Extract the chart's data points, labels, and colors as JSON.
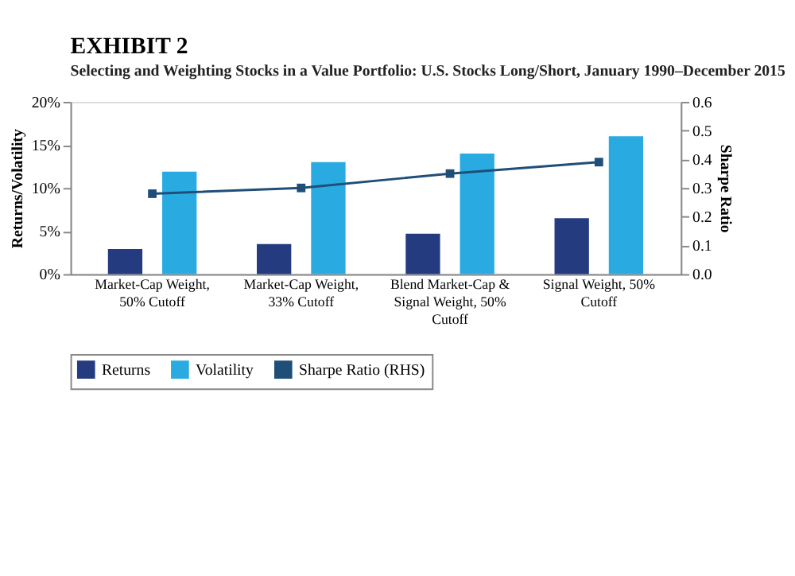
{
  "chart_data": {
    "type": "bar",
    "title": "EXHIBIT 2",
    "subtitle": "Selecting and Weighting Stocks in a Value Portfolio: U.S. Stocks Long/Short, January 1990–December 2015",
    "categories": [
      "Market-Cap Weight, 50% Cutoff",
      "Market-Cap Weight, 33% Cutoff",
      "Blend Market-Cap & Signal Weight, 50% Cutoff",
      "Signal Weight, 50% Cutoff"
    ],
    "series": [
      {
        "name": "Returns",
        "color": "#253b80",
        "values": [
          2.9,
          3.5,
          4.7,
          6.5
        ]
      },
      {
        "name": "Volatility",
        "color": "#29abe2",
        "values": [
          11.9,
          13.0,
          14.0,
          16.0
        ]
      },
      {
        "name": "Sharpe Ratio (RHS)",
        "color": "#1f4e79",
        "type": "line",
        "axis": "y2",
        "values": [
          0.28,
          0.3,
          0.35,
          0.39
        ]
      }
    ],
    "ylabel": "Returns/Volatility",
    "y2label": "Sharpe Ratio",
    "ylim": [
      0,
      20
    ],
    "yticks": [
      {
        "value": 0,
        "label": "0%"
      },
      {
        "value": 5,
        "label": "5%"
      },
      {
        "value": 10,
        "label": "10%"
      },
      {
        "value": 15,
        "label": "15%"
      },
      {
        "value": 20,
        "label": "20%"
      }
    ],
    "y2lim": [
      0,
      0.6
    ],
    "y2ticks": [
      {
        "value": 0,
        "label": "0.0"
      },
      {
        "value": 0.1,
        "label": "0.1"
      },
      {
        "value": 0.2,
        "label": "0.2"
      },
      {
        "value": 0.3,
        "label": "0.3"
      },
      {
        "value": 0.4,
        "label": "0.4"
      },
      {
        "value": 0.5,
        "label": "0.5"
      },
      {
        "value": 0.6,
        "label": "0.6"
      }
    ],
    "marker": "square",
    "legend": "bottom",
    "grid": false
  }
}
